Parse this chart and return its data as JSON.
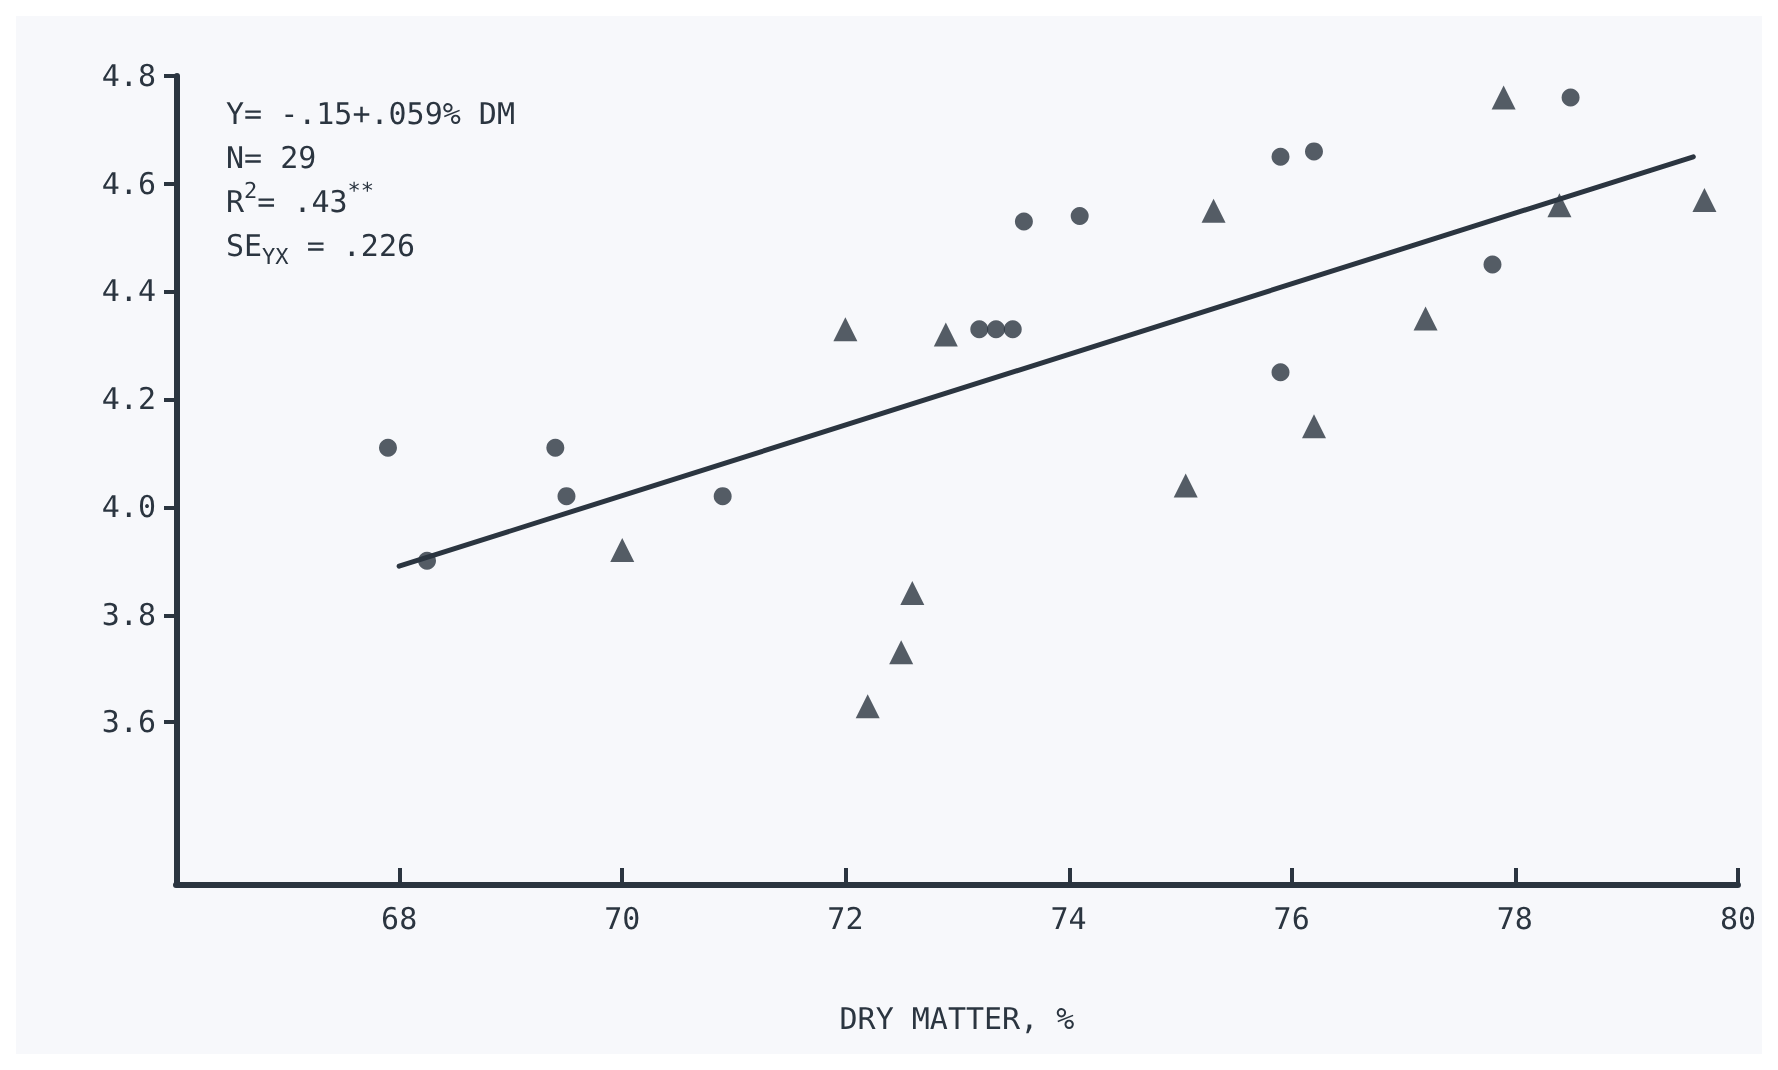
{
  "chart_data": {
    "type": "scatter",
    "xlabel": "DRY MATTER, %",
    "xlim": [
      66,
      80
    ],
    "xticks": [
      68,
      70,
      72,
      74,
      76,
      78,
      80
    ],
    "ylim": [
      3.3,
      4.8
    ],
    "yticks": [
      3.6,
      3.8,
      {
        "value": 4,
        "label": "4.0"
      },
      4.2,
      4.4,
      4.6,
      4.8
    ],
    "grid": false,
    "annotations": [
      "Y= -.15+.059% DM",
      "N= 29",
      "R$^{2}$= .43$^{**}$",
      "SE$_{YX}$ = .226"
    ],
    "series": [
      {
        "marker": "circle",
        "color": "#2b3540",
        "x": [
          67.9,
          69.4,
          69.5,
          70.9,
          68.25,
          73.6,
          74.1,
          73.2,
          73.35,
          73.5,
          75.9,
          76.2,
          78.5,
          77.8,
          75.9
        ],
        "values": [
          4.11,
          4.11,
          4.02,
          4.02,
          3.9,
          4.53,
          4.54,
          4.33,
          4.33,
          4.33,
          4.65,
          4.66,
          4.76,
          4.45,
          4.25
        ]
      },
      {
        "marker": "triangle",
        "color": "#2b3540",
        "x": [
          72.0,
          72.9,
          75.3,
          77.9,
          78.4,
          79.7,
          77.2,
          76.2,
          75.05,
          70.0,
          72.6,
          72.5,
          72.2
        ],
        "values": [
          4.33,
          4.32,
          4.55,
          4.76,
          4.56,
          4.57,
          4.35,
          4.15,
          4.04,
          3.92,
          3.84,
          3.73,
          3.63
        ]
      },
      {
        "type": "line",
        "marker": "none",
        "line_style": "solid",
        "color": "#2b3540",
        "x": [
          68.0,
          79.6
        ],
        "values": [
          3.89,
          4.65
        ]
      }
    ]
  }
}
